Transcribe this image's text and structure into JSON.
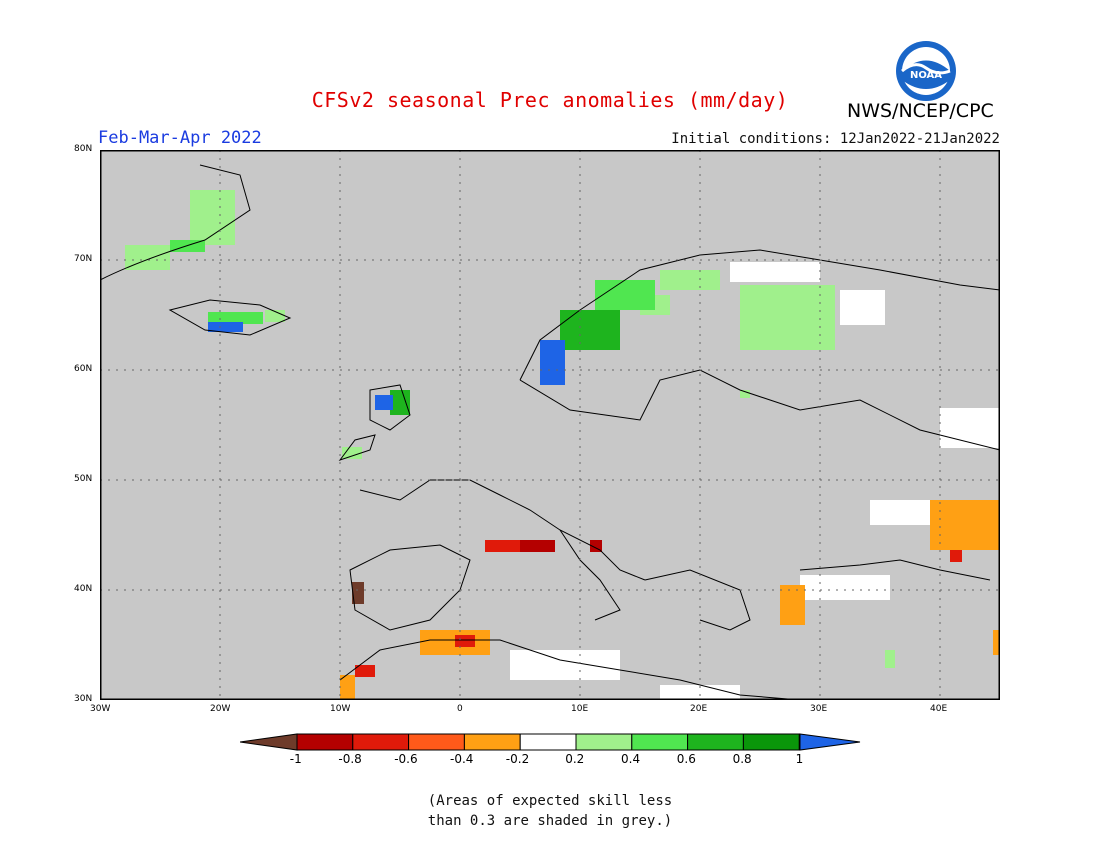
{
  "title": "CFSv2 seasonal Prec anomalies (mm/day)",
  "subtitle": "Feb-Mar-Apr 2022",
  "initial_conditions": "Initial conditions: 12Jan2022-21Jan2022",
  "agency": "NWS/NCEP/CPC",
  "logo_text": "NOAA",
  "note_line1": "(Areas of expected skill less",
  "note_line2": "than 0.3 are shaded in grey.)",
  "map": {
    "lat_labels": [
      "80N",
      "70N",
      "60N",
      "50N",
      "40N",
      "30N"
    ],
    "lon_labels": [
      "30W",
      "20W",
      "10W",
      "0",
      "10E",
      "20E",
      "30E",
      "40E"
    ],
    "no_skill_color": "#c8c8c8",
    "grid": "dotted"
  },
  "colorbar": {
    "labels": [
      "-1",
      "-0.8",
      "-0.6",
      "-0.4",
      "-0.2",
      "0.2",
      "0.4",
      "0.6",
      "0.8",
      "1"
    ],
    "colors": [
      "#6e3b2a",
      "#b40000",
      "#e01a0a",
      "#ff5a1a",
      "#ffa014",
      "#ffffff",
      "#a0f08c",
      "#50e650",
      "#1eb41e",
      "#0a960a",
      "#1e64e6"
    ]
  }
}
